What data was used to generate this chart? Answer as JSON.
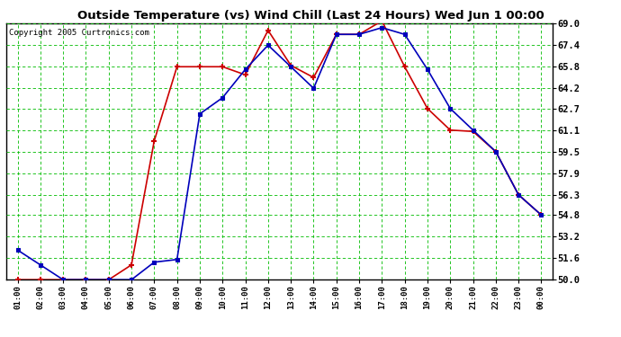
{
  "title": "Outside Temperature (vs) Wind Chill (Last 24 Hours) Wed Jun 1 00:00",
  "copyright": "Copyright 2005 Curtronics.com",
  "hours": [
    "01:00",
    "02:00",
    "03:00",
    "04:00",
    "05:00",
    "06:00",
    "07:00",
    "08:00",
    "09:00",
    "10:00",
    "11:00",
    "12:00",
    "13:00",
    "14:00",
    "15:00",
    "16:00",
    "17:00",
    "18:00",
    "19:00",
    "20:00",
    "21:00",
    "22:00",
    "23:00",
    "00:00"
  ],
  "outside_temp": [
    52.2,
    51.1,
    50.0,
    50.0,
    50.0,
    50.0,
    51.3,
    51.5,
    62.3,
    63.5,
    65.6,
    67.4,
    65.8,
    64.2,
    68.2,
    68.2,
    68.7,
    68.2,
    65.6,
    62.7,
    61.1,
    59.5,
    56.3,
    54.8
  ],
  "wind_chill": [
    50.0,
    50.0,
    50.0,
    50.0,
    50.0,
    51.1,
    60.3,
    65.8,
    65.8,
    65.8,
    65.2,
    68.5,
    65.9,
    65.0,
    68.2,
    68.2,
    69.2,
    65.8,
    62.7,
    61.1,
    61.0,
    59.5,
    56.3,
    54.8
  ],
  "temp_color": "#0000bb",
  "wind_color": "#cc0000",
  "bg_color": "#ffffff",
  "grid_color": "#00bb00",
  "ymin": 50.0,
  "ymax": 69.0,
  "yticks": [
    50.0,
    51.6,
    53.2,
    54.8,
    56.3,
    57.9,
    59.5,
    61.1,
    62.7,
    64.2,
    65.8,
    67.4,
    69.0
  ]
}
